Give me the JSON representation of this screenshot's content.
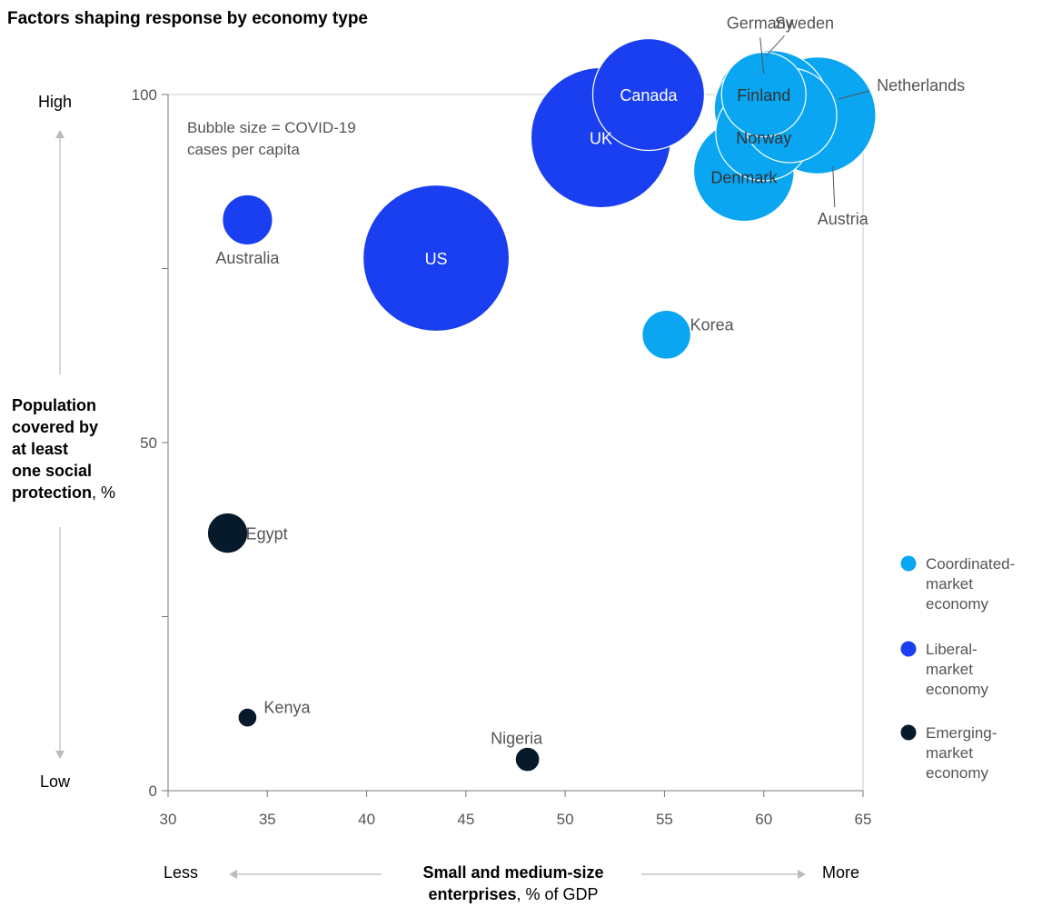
{
  "chart_data": {
    "type": "scatter",
    "title": "Factors shaping response by economy type",
    "note_lines": [
      "Bubble size = COVID-19",
      "cases per capita"
    ],
    "xlim": [
      30,
      65
    ],
    "ylim": [
      0,
      100
    ],
    "x_ticks": [
      "30",
      "35",
      "40",
      "45",
      "50",
      "55",
      "60",
      "65"
    ],
    "y_ticks": [
      "0",
      "50",
      "100"
    ],
    "x_axis": {
      "low": "Less",
      "high": "More",
      "label_bold_line1": "Small and medium-size",
      "label_bold_line2": "enterprises",
      "label_suffix": ", % of GDP"
    },
    "y_axis": {
      "high": "High",
      "low": "Low",
      "label_lines": [
        "Population",
        "covered by",
        "at least",
        "one social",
        "protection"
      ],
      "label_suffix": ", %"
    },
    "legend": [
      {
        "key": "coordinated",
        "lines": [
          "Coordinated-",
          "market",
          "economy"
        ],
        "color": "#0aa6f2"
      },
      {
        "key": "liberal",
        "lines": [
          "Liberal-",
          "market",
          "economy"
        ],
        "color": "#1a3ff0"
      },
      {
        "key": "emerging",
        "lines": [
          "Emerging-",
          "market",
          "economy"
        ],
        "color": "#061a2c"
      }
    ],
    "series": [
      {
        "label": "Canada",
        "x": 54.2,
        "y": 100,
        "size": 4.2,
        "group": "liberal"
      },
      {
        "label": "UK",
        "x": 51.8,
        "y": 93.8,
        "size": 6.6,
        "group": "liberal"
      },
      {
        "label": "Australia",
        "x": 34.0,
        "y": 82.0,
        "size": 0.85,
        "group": "liberal"
      },
      {
        "label": "US",
        "x": 43.5,
        "y": 76.5,
        "size": 7.2,
        "group": "liberal"
      },
      {
        "label": "Korea",
        "x": 55.1,
        "y": 65.5,
        "size": 0.8,
        "group": "coordinated"
      },
      {
        "label": "Sweden",
        "x": 60.4,
        "y": 98.0,
        "size": 4.5,
        "group": "coordinated"
      },
      {
        "label": "Austria",
        "x": 62.7,
        "y": 97.0,
        "size": 4.6,
        "group": "coordinated"
      },
      {
        "label": "Germany",
        "x": 60.0,
        "y": 98.0,
        "size": 3.3,
        "group": "coordinated"
      },
      {
        "label": "Denmark",
        "x": 59.0,
        "y": 89.0,
        "size": 3.4,
        "group": "coordinated"
      },
      {
        "label": "Norway",
        "x": 60.0,
        "y": 94.5,
        "size": 3.1,
        "group": "coordinated"
      },
      {
        "label": "Netherlands",
        "x": 61.3,
        "y": 97.0,
        "size": 3.0,
        "group": "coordinated"
      },
      {
        "label": "Finland",
        "x": 60.0,
        "y": 100,
        "size": 2.4,
        "group": "coordinated"
      },
      {
        "label": "Egypt",
        "x": 33.0,
        "y": 37.0,
        "size": 0.55,
        "group": "emerging"
      },
      {
        "label": "Kenya",
        "x": 34.0,
        "y": 10.5,
        "size": 0.12,
        "group": "emerging"
      },
      {
        "label": "Nigeria",
        "x": 48.1,
        "y": 4.5,
        "size": 0.2,
        "group": "emerging"
      }
    ]
  }
}
